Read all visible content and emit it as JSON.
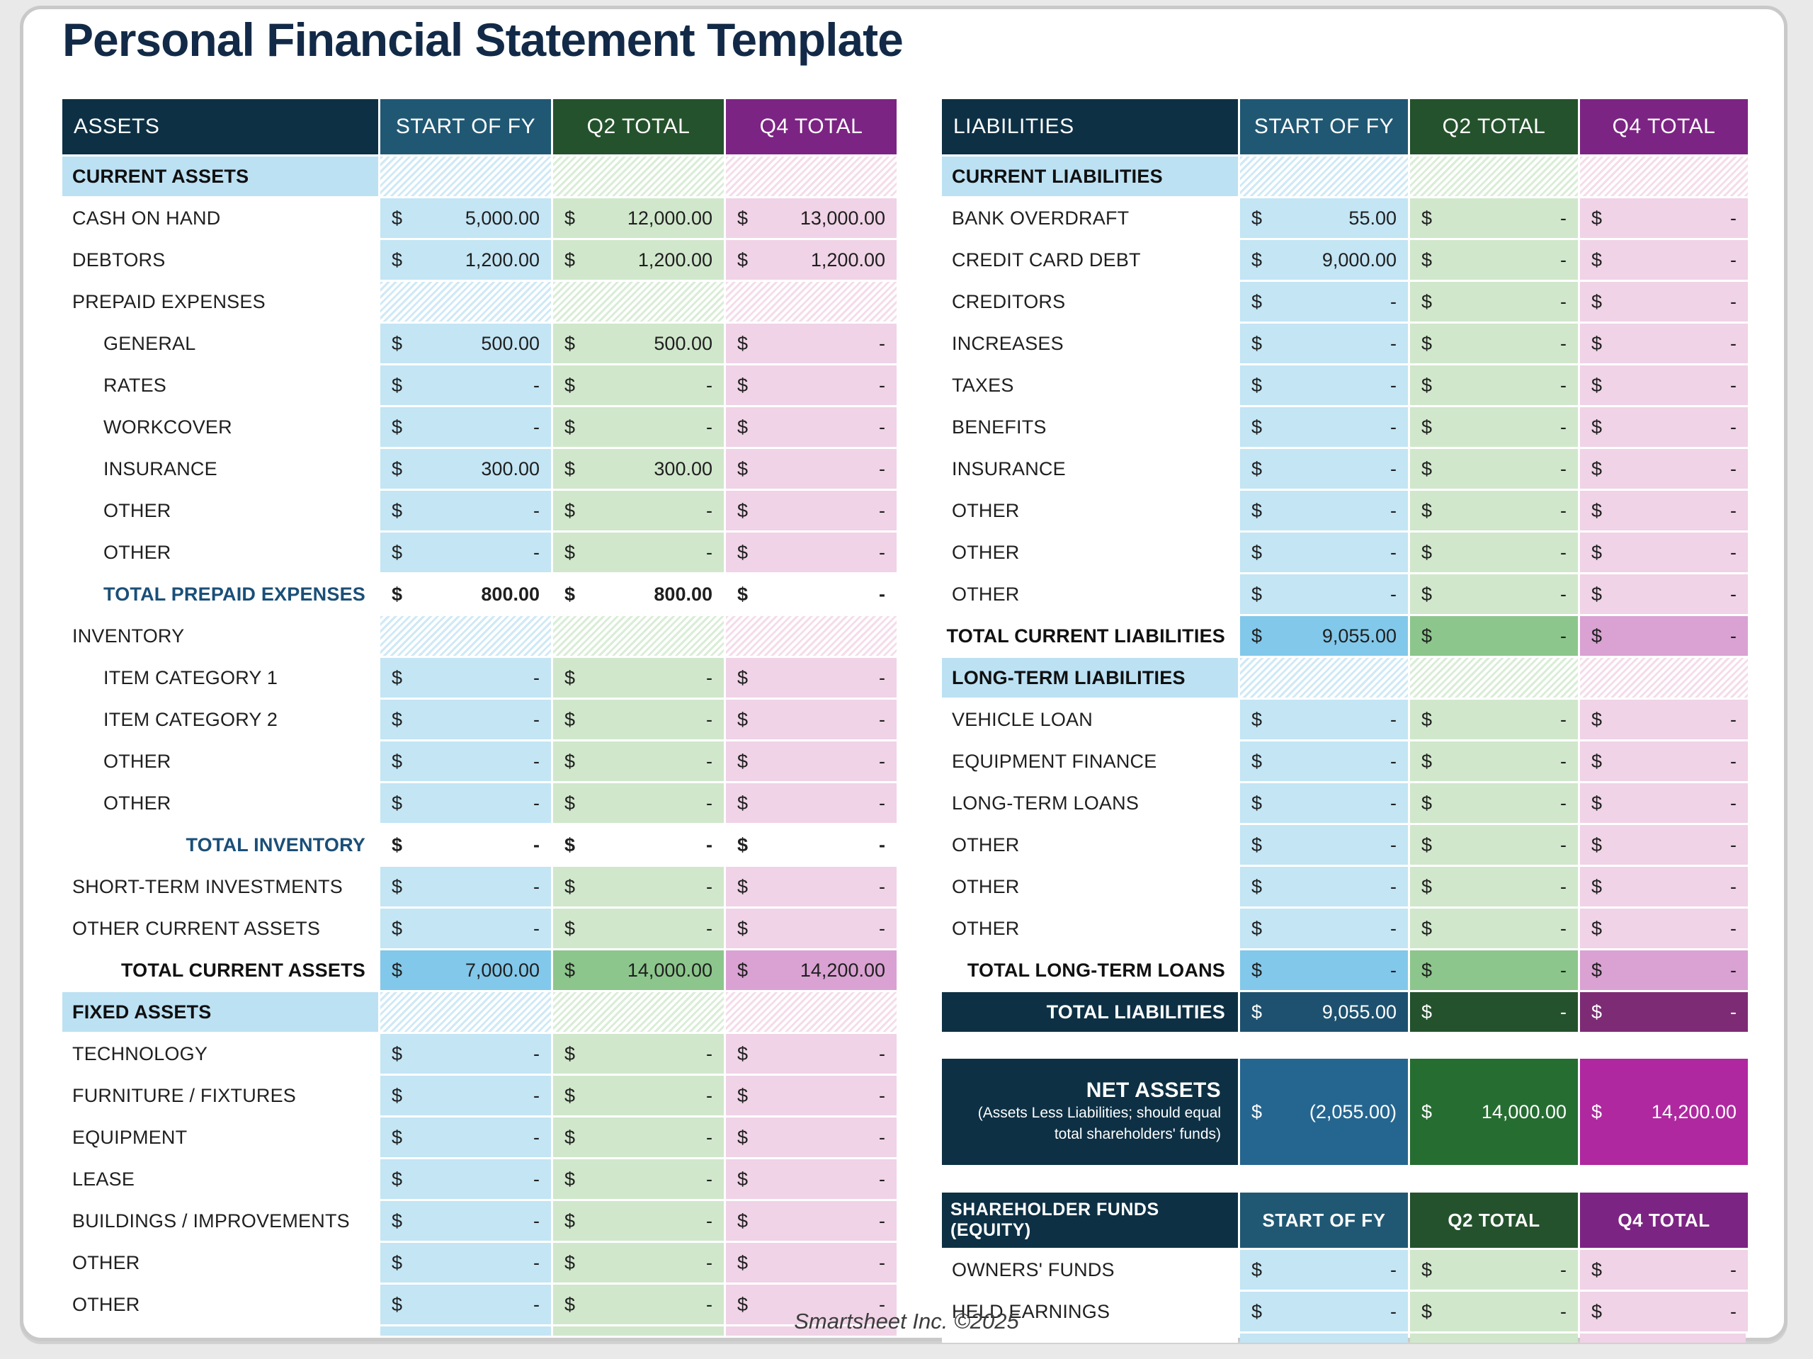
{
  "page": {
    "title": "Personal Financial Statement Template",
    "footer": "Smartsheet Inc. ©2025"
  },
  "currency": "$",
  "colors": {
    "navy_header": "#0d3044",
    "blue_header": "#205874",
    "green_header": "#24522c",
    "purple_header": "#7c2483",
    "cell_blue": "#c3e5f4",
    "cell_green": "#d0e7cb",
    "cell_pink": "#f0d3e6",
    "total_blue": "#82c8ea",
    "total_green": "#8cc68c",
    "total_pink": "#d9a2d2",
    "dark_blue": "#1d516f",
    "dark_green": "#24522c",
    "dark_purple": "#7d2b74",
    "net_blue": "#256690",
    "net_green": "#266d31",
    "net_magenta": "#af28a0",
    "section_bg": "#bce1f3",
    "title_navy": "#122a47"
  },
  "tables": {
    "assets": {
      "headers": [
        "ASSETS",
        "START OF FY",
        "Q2 TOTAL",
        "Q4 TOTAL"
      ],
      "rows": [
        {
          "type": "section",
          "label": "CURRENT ASSETS"
        },
        {
          "type": "item",
          "label": "CASH ON HAND",
          "values": [
            "5,000.00",
            "12,000.00",
            "13,000.00"
          ]
        },
        {
          "type": "item",
          "label": "DEBTORS",
          "values": [
            "1,200.00",
            "1,200.00",
            "1,200.00"
          ]
        },
        {
          "type": "subhead",
          "label": "PREPAID EXPENSES"
        },
        {
          "type": "sub",
          "label": "GENERAL",
          "values": [
            "500.00",
            "500.00",
            "-"
          ]
        },
        {
          "type": "sub",
          "label": "RATES",
          "values": [
            "-",
            "-",
            "-"
          ]
        },
        {
          "type": "sub",
          "label": "WORKCOVER",
          "values": [
            "-",
            "-",
            "-"
          ]
        },
        {
          "type": "sub",
          "label": "INSURANCE",
          "values": [
            "300.00",
            "300.00",
            "-"
          ]
        },
        {
          "type": "sub",
          "label": "OTHER",
          "values": [
            "-",
            "-",
            "-"
          ]
        },
        {
          "type": "sub",
          "label": "OTHER",
          "values": [
            "-",
            "-",
            "-"
          ]
        },
        {
          "type": "total",
          "label": "TOTAL PREPAID EXPENSES",
          "values": [
            "800.00",
            "800.00",
            "-"
          ]
        },
        {
          "type": "subhead",
          "label": "INVENTORY"
        },
        {
          "type": "sub",
          "label": "ITEM CATEGORY 1",
          "values": [
            "-",
            "-",
            "-"
          ]
        },
        {
          "type": "sub",
          "label": "ITEM CATEGORY 2",
          "values": [
            "-",
            "-",
            "-"
          ]
        },
        {
          "type": "sub",
          "label": "OTHER",
          "values": [
            "-",
            "-",
            "-"
          ]
        },
        {
          "type": "sub",
          "label": "OTHER",
          "values": [
            "-",
            "-",
            "-"
          ]
        },
        {
          "type": "total",
          "label": "TOTAL INVENTORY",
          "values": [
            "-",
            "-",
            "-"
          ]
        },
        {
          "type": "item",
          "label": "SHORT-TERM INVESTMENTS",
          "values": [
            "-",
            "-",
            "-"
          ]
        },
        {
          "type": "item",
          "label": "OTHER CURRENT ASSETS",
          "values": [
            "-",
            "-",
            "-"
          ]
        },
        {
          "type": "grand",
          "label": "TOTAL CURRENT ASSETS",
          "values": [
            "7,000.00",
            "14,000.00",
            "14,200.00"
          ]
        },
        {
          "type": "section",
          "label": "FIXED ASSETS"
        },
        {
          "type": "item",
          "label": "TECHNOLOGY",
          "values": [
            "-",
            "-",
            "-"
          ]
        },
        {
          "type": "item",
          "label": "FURNITURE / FIXTURES",
          "values": [
            "-",
            "-",
            "-"
          ]
        },
        {
          "type": "item",
          "label": "EQUIPMENT",
          "values": [
            "-",
            "-",
            "-"
          ]
        },
        {
          "type": "item",
          "label": "LEASE",
          "values": [
            "-",
            "-",
            "-"
          ]
        },
        {
          "type": "item",
          "label": "BUILDINGS / IMPROVEMENTS",
          "values": [
            "-",
            "-",
            "-"
          ]
        },
        {
          "type": "item",
          "label": "OTHER",
          "values": [
            "-",
            "-",
            "-"
          ]
        },
        {
          "type": "item",
          "label": "OTHER",
          "values": [
            "-",
            "-",
            "-"
          ]
        },
        {
          "type": "sliver"
        }
      ]
    },
    "liabilities": {
      "headers": [
        "LIABILITIES",
        "START OF FY",
        "Q2 TOTAL",
        "Q4 TOTAL"
      ],
      "rows": [
        {
          "type": "section",
          "label": "CURRENT LIABILITIES"
        },
        {
          "type": "item",
          "label": "BANK OVERDRAFT",
          "values": [
            "55.00",
            "-",
            "-"
          ]
        },
        {
          "type": "item",
          "label": "CREDIT CARD DEBT",
          "values": [
            "9,000.00",
            "-",
            "-"
          ]
        },
        {
          "type": "item",
          "label": "CREDITORS",
          "values": [
            "-",
            "-",
            "-"
          ]
        },
        {
          "type": "item",
          "label": "INCREASES",
          "values": [
            "-",
            "-",
            "-"
          ]
        },
        {
          "type": "item",
          "label": "TAXES",
          "values": [
            "-",
            "-",
            "-"
          ]
        },
        {
          "type": "item",
          "label": "BENEFITS",
          "values": [
            "-",
            "-",
            "-"
          ]
        },
        {
          "type": "item",
          "label": "INSURANCE",
          "values": [
            "-",
            "-",
            "-"
          ]
        },
        {
          "type": "item",
          "label": "OTHER",
          "values": [
            "-",
            "-",
            "-"
          ]
        },
        {
          "type": "item",
          "label": "OTHER",
          "values": [
            "-",
            "-",
            "-"
          ]
        },
        {
          "type": "item",
          "label": "OTHER",
          "values": [
            "-",
            "-",
            "-"
          ]
        },
        {
          "type": "grand",
          "label": "TOTAL CURRENT LIABILITIES",
          "values": [
            "9,055.00",
            "-",
            "-"
          ]
        },
        {
          "type": "section",
          "label": "LONG-TERM LIABILITIES"
        },
        {
          "type": "item",
          "label": "VEHICLE LOAN",
          "values": [
            "-",
            "-",
            "-"
          ]
        },
        {
          "type": "item",
          "label": "EQUIPMENT FINANCE",
          "values": [
            "-",
            "-",
            "-"
          ]
        },
        {
          "type": "item",
          "label": "LONG-TERM LOANS",
          "values": [
            "-",
            "-",
            "-"
          ]
        },
        {
          "type": "item",
          "label": "OTHER",
          "values": [
            "-",
            "-",
            "-"
          ]
        },
        {
          "type": "item",
          "label": "OTHER",
          "values": [
            "-",
            "-",
            "-"
          ]
        },
        {
          "type": "item",
          "label": "OTHER",
          "values": [
            "-",
            "-",
            "-"
          ]
        },
        {
          "type": "grand",
          "label": "TOTAL LONG-TERM LOANS",
          "values": [
            "-",
            "-",
            "-"
          ]
        },
        {
          "type": "dark",
          "label": "TOTAL LIABILITIES",
          "values": [
            "9,055.00",
            "-",
            "-"
          ]
        }
      ]
    },
    "net_assets": {
      "label": "NET ASSETS",
      "sublabel_lines": [
        "(Assets Less Liabilities; should equal",
        "total shareholders' funds)"
      ],
      "values": [
        "(2,055.00)",
        "14,000.00",
        "14,200.00"
      ]
    },
    "equity": {
      "headers": [
        "SHAREHOLDER FUNDS (EQUITY)",
        "START OF FY",
        "Q2 TOTAL",
        "Q4 TOTAL"
      ],
      "rows": [
        {
          "type": "item",
          "label": "OWNERS' FUNDS",
          "values": [
            "-",
            "-",
            "-"
          ]
        },
        {
          "type": "item",
          "label": "HELD EARNINGS",
          "values": [
            "-",
            "-",
            "-"
          ]
        },
        {
          "type": "sliver"
        }
      ]
    }
  }
}
